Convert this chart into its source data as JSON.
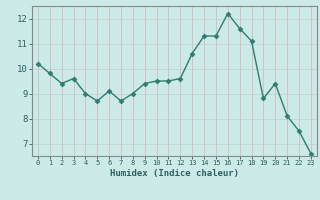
{
  "x": [
    0,
    1,
    2,
    3,
    4,
    5,
    6,
    7,
    8,
    9,
    10,
    11,
    12,
    13,
    14,
    15,
    16,
    17,
    18,
    19,
    20,
    21,
    22,
    23
  ],
  "y": [
    10.2,
    9.8,
    9.4,
    9.6,
    9.0,
    8.7,
    9.1,
    8.7,
    9.0,
    9.4,
    9.5,
    9.5,
    9.6,
    10.6,
    11.3,
    11.3,
    12.2,
    11.6,
    11.1,
    8.8,
    9.4,
    8.1,
    7.5,
    6.6
  ],
  "xlabel": "Humidex (Indice chaleur)",
  "ylim": [
    6.5,
    12.5
  ],
  "xlim": [
    -0.5,
    23.5
  ],
  "yticks": [
    7,
    8,
    9,
    10,
    11,
    12
  ],
  "xticks": [
    0,
    1,
    2,
    3,
    4,
    5,
    6,
    7,
    8,
    9,
    10,
    11,
    12,
    13,
    14,
    15,
    16,
    17,
    18,
    19,
    20,
    21,
    22,
    23
  ],
  "line_color": "#2e7d6e",
  "marker_color": "#2e7d6e",
  "bg_color": "#cceae8",
  "grid_color": "#c0d0ce",
  "axis_color": "#888888",
  "tick_color": "#2e5f5f",
  "label_color": "#2e5f5f"
}
